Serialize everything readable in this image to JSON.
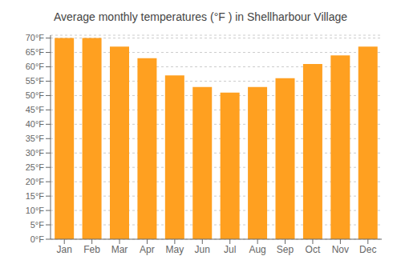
{
  "chart_data": {
    "type": "bar",
    "title": "Average monthly temperatures (°F ) in Shellharbour Village",
    "categories": [
      "Jan",
      "Feb",
      "Mar",
      "Apr",
      "May",
      "Jun",
      "Jul",
      "Aug",
      "Sep",
      "Oct",
      "Nov",
      "Dec"
    ],
    "values": [
      70,
      70,
      67,
      63,
      57,
      53,
      51,
      53,
      56,
      61,
      64,
      67
    ],
    "color": "#FFA020",
    "ylim": [
      0,
      71
    ],
    "yticks": [
      {
        "value": 0,
        "label": "0°F"
      },
      {
        "value": 5,
        "label": "5°F"
      },
      {
        "value": 10,
        "label": "10°F"
      },
      {
        "value": 15,
        "label": "15°F"
      },
      {
        "value": 20,
        "label": "20°F"
      },
      {
        "value": 25,
        "label": "25°F"
      },
      {
        "value": 30,
        "label": "30°F"
      },
      {
        "value": 35,
        "label": "35°F"
      },
      {
        "value": 40,
        "label": "40°F"
      },
      {
        "value": 45,
        "label": "45°F"
      },
      {
        "value": 50,
        "label": "50°F"
      },
      {
        "value": 55,
        "label": "55°F"
      },
      {
        "value": 60,
        "label": "60°F"
      },
      {
        "value": 65,
        "label": "65°F"
      },
      {
        "value": 70,
        "label": "70°F"
      }
    ],
    "grid": true
  }
}
